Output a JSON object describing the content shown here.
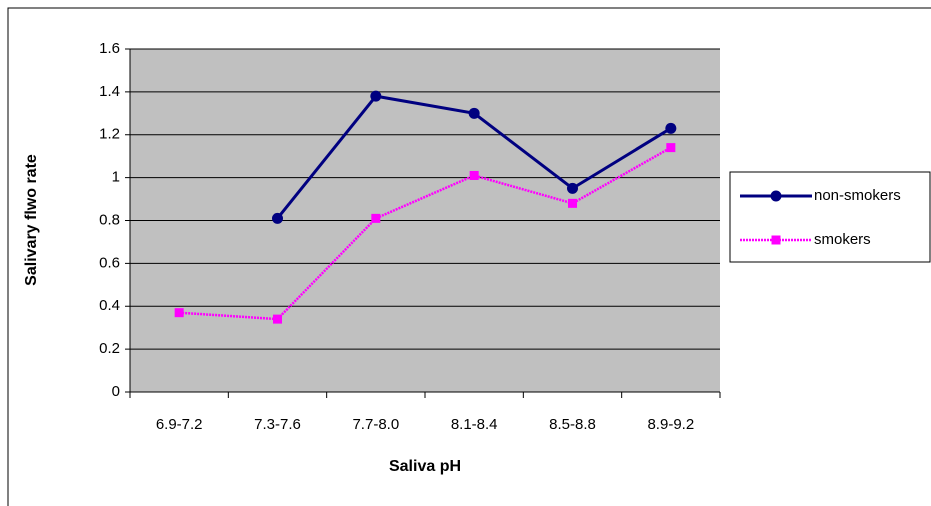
{
  "chart_data": {
    "type": "line",
    "categories": [
      "6.9-7.2",
      "7.3-7.6",
      "7.7-8.0",
      "8.1-8.4",
      "8.5-8.8",
      "8.9-9.2"
    ],
    "series": [
      {
        "name": "non-smokers",
        "color": "#000080",
        "marker": "circle",
        "values": [
          null,
          0.81,
          1.38,
          1.3,
          0.95,
          1.23
        ]
      },
      {
        "name": "smokers",
        "color": "#ff00ff",
        "marker": "square",
        "values": [
          0.37,
          0.34,
          0.81,
          1.01,
          0.88,
          1.14
        ]
      }
    ],
    "y_label": "Salivary flwo rate",
    "x_label": "Saliva pH",
    "ylim": [
      0,
      1.6
    ],
    "yticks": [
      0,
      0.2,
      0.4,
      0.6,
      0.8,
      1,
      1.2,
      1.4,
      1.6
    ],
    "grid": true,
    "legend": "right"
  }
}
